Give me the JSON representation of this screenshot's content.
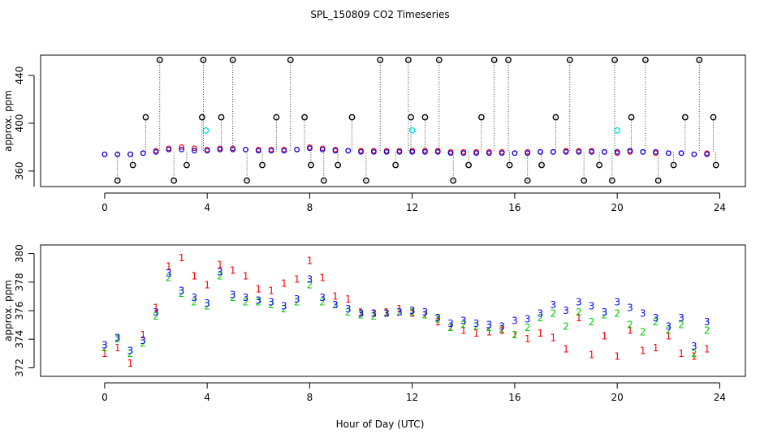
{
  "title": "SPL_150809  CO2 Timeseries",
  "xlabel": "Hour of Day (UTC)",
  "colors": {
    "red": "#ff0000",
    "blue": "#0000ff",
    "green": "#00cc00",
    "cyan": "#00e5e5",
    "black": "#000000"
  },
  "chart_data": [
    {
      "type": "scatter",
      "panel": "top",
      "ylabel": "approx. ppm",
      "xlim": [
        -2.5,
        25
      ],
      "ylim": [
        347,
        457
      ],
      "xticks": [
        0,
        4,
        8,
        12,
        16,
        20,
        24
      ],
      "yticks": [
        360,
        400,
        440
      ],
      "series": [
        {
          "name": "red points",
          "color": "#ff0000",
          "x": [
            0.0,
            0.5,
            1.0,
            1.5,
            2.0,
            2.5,
            3.0,
            3.5,
            4.0,
            4.5,
            5.0,
            5.5,
            6.0,
            6.5,
            7.0,
            7.5,
            8.0,
            8.5,
            9.0,
            9.5,
            10.0,
            10.5,
            11.0,
            11.5,
            12.0,
            12.5,
            13.0,
            13.5,
            14.0,
            14.5,
            15.0,
            15.5,
            16.0,
            16.5,
            17.0,
            17.5,
            18.0,
            18.5,
            19.0,
            19.5,
            20.0,
            20.5,
            21.0,
            21.5,
            22.0,
            22.5,
            23.0,
            23.5
          ],
          "y": [
            374,
            374,
            374,
            375,
            377,
            379,
            380,
            379,
            378,
            379,
            379,
            378,
            378,
            378,
            378,
            378,
            380,
            379,
            378,
            377,
            377,
            377,
            377,
            377,
            377,
            377,
            377,
            376,
            376,
            376,
            376,
            376,
            375,
            376,
            376,
            376,
            377,
            377,
            377,
            376,
            375,
            376,
            376,
            375,
            375,
            375,
            374,
            375
          ]
        },
        {
          "name": "blue points",
          "color": "#0000ff",
          "x": [
            0.0,
            0.5,
            1.0,
            1.5,
            2.0,
            2.5,
            3.0,
            3.5,
            4.0,
            4.5,
            5.0,
            5.5,
            6.0,
            6.5,
            7.0,
            7.5,
            8.0,
            8.5,
            9.0,
            9.5,
            10.0,
            10.5,
            11.0,
            11.5,
            12.0,
            12.5,
            13.0,
            13.5,
            14.0,
            14.5,
            15.0,
            15.5,
            16.0,
            16.5,
            17.0,
            17.5,
            18.0,
            18.5,
            19.0,
            19.5,
            20.0,
            20.5,
            21.0,
            21.5,
            22.0,
            22.5,
            23.0,
            23.5
          ],
          "y": [
            374,
            374,
            374,
            375,
            376,
            378,
            378,
            377,
            377,
            378,
            378,
            378,
            377,
            377,
            377,
            378,
            379,
            378,
            377,
            377,
            376,
            376,
            376,
            376,
            376,
            376,
            376,
            375,
            375,
            375,
            375,
            375,
            375,
            375,
            376,
            376,
            376,
            376,
            376,
            376,
            376,
            377,
            376,
            376,
            375,
            375,
            374,
            374
          ]
        },
        {
          "name": "black circles",
          "color": "#000000",
          "x": [
            0.5,
            1.1,
            1.6,
            2.15,
            2.7,
            3.2,
            3.8,
            3.85,
            4.55,
            5.0,
            5.55,
            6.15,
            6.7,
            7.25,
            7.8,
            8.05,
            8.55,
            9.1,
            9.65,
            10.2,
            10.75,
            11.35,
            11.85,
            11.95,
            12.5,
            13.05,
            13.6,
            14.2,
            14.7,
            15.2,
            15.75,
            15.8,
            16.5,
            17.05,
            17.6,
            18.15,
            18.7,
            19.3,
            19.8,
            19.9,
            20.55,
            21.1,
            21.6,
            22.2,
            22.65,
            23.2,
            23.75,
            23.85
          ],
          "y": [
            352,
            365,
            405,
            453,
            352,
            365,
            405,
            453,
            405,
            453,
            352,
            365,
            405,
            453,
            405,
            365,
            352,
            365,
            405,
            352,
            453,
            365,
            453,
            405,
            405,
            453,
            352,
            365,
            405,
            453,
            453,
            365,
            352,
            365,
            405,
            453,
            352,
            365,
            352,
            453,
            405,
            453,
            352,
            365,
            405,
            453,
            405,
            365
          ]
        },
        {
          "name": "cyan circles",
          "color": "#00e5e5",
          "x": [
            3.95,
            12.0,
            20.0
          ],
          "y": [
            394,
            394,
            394
          ]
        }
      ]
    },
    {
      "type": "scatter",
      "panel": "bottom",
      "ylabel": "approx. ppm",
      "xlim": [
        -2.5,
        25
      ],
      "ylim": [
        371.4,
        380.6
      ],
      "xticks": [
        0,
        4,
        8,
        12,
        16,
        20,
        24
      ],
      "yticks": [
        372,
        374,
        376,
        378,
        380
      ],
      "series": [
        {
          "name": "1",
          "color": "#ff0000",
          "x": [
            0.0,
            0.5,
            1.0,
            1.5,
            2.0,
            2.5,
            3.0,
            3.5,
            4.0,
            4.5,
            5.0,
            5.5,
            6.0,
            6.5,
            7.0,
            7.5,
            8.0,
            8.5,
            9.0,
            9.5,
            10.0,
            10.5,
            11.0,
            11.5,
            12.0,
            12.5,
            13.0,
            13.5,
            14.0,
            14.5,
            15.0,
            15.5,
            16.0,
            16.5,
            17.0,
            17.5,
            18.0,
            18.5,
            19.0,
            19.5,
            20.0,
            20.5,
            21.0,
            21.5,
            22.0,
            22.5,
            23.0,
            23.5
          ],
          "y": [
            373.0,
            373.4,
            372.3,
            374.3,
            376.2,
            379.1,
            379.7,
            378.4,
            377.8,
            379.2,
            378.8,
            378.4,
            377.5,
            377.4,
            377.9,
            378.2,
            379.5,
            378.3,
            377.0,
            376.8,
            375.9,
            375.8,
            375.9,
            376.1,
            375.8,
            375.7,
            375.2,
            374.8,
            374.6,
            374.4,
            374.5,
            374.6,
            374.3,
            374.0,
            374.4,
            374.1,
            373.3,
            375.5,
            372.9,
            374.2,
            372.8,
            374.6,
            373.2,
            373.4,
            374.2,
            373.0,
            372.8,
            373.3
          ]
        },
        {
          "name": "2",
          "color": "#00cc00",
          "x": [
            0.0,
            0.5,
            1.0,
            1.5,
            2.0,
            2.5,
            3.0,
            3.5,
            4.0,
            4.5,
            5.0,
            5.5,
            6.0,
            6.5,
            7.0,
            7.5,
            8.0,
            8.5,
            9.0,
            9.5,
            10.0,
            10.5,
            11.0,
            11.5,
            12.0,
            12.5,
            13.0,
            13.5,
            14.0,
            14.5,
            15.0,
            15.5,
            16.0,
            16.5,
            17.0,
            17.5,
            18.0,
            18.5,
            19.0,
            19.5,
            20.0,
            20.5,
            21.0,
            21.5,
            22.0,
            22.5,
            23.0,
            23.5
          ],
          "y": [
            373.4,
            374.0,
            373.0,
            373.7,
            375.6,
            378.3,
            377.2,
            376.6,
            376.3,
            378.4,
            376.9,
            376.6,
            376.6,
            376.4,
            376.1,
            376.6,
            377.8,
            376.6,
            376.4,
            375.9,
            375.7,
            375.6,
            375.8,
            375.9,
            375.9,
            375.7,
            375.4,
            374.8,
            375.0,
            374.9,
            374.8,
            374.7,
            374.3,
            374.8,
            375.5,
            375.8,
            374.9,
            375.9,
            375.2,
            375.7,
            375.8,
            375.0,
            374.5,
            375.2,
            374.6,
            375.0,
            373.0,
            374.6
          ]
        },
        {
          "name": "3",
          "color": "#0000ff",
          "x": [
            0.0,
            0.5,
            1.0,
            1.5,
            2.0,
            2.5,
            3.0,
            3.5,
            4.0,
            4.5,
            5.0,
            5.5,
            6.0,
            6.5,
            7.0,
            7.5,
            8.0,
            8.5,
            9.0,
            9.5,
            10.0,
            10.5,
            11.0,
            11.5,
            12.0,
            12.5,
            13.0,
            13.5,
            14.0,
            14.5,
            15.0,
            15.5,
            16.0,
            16.5,
            17.0,
            17.5,
            18.0,
            18.5,
            19.0,
            19.5,
            20.0,
            20.5,
            21.0,
            21.5,
            22.0,
            22.5,
            23.0,
            23.5
          ],
          "y": [
            373.6,
            374.1,
            373.2,
            373.9,
            375.9,
            378.6,
            377.4,
            376.9,
            376.5,
            378.7,
            377.1,
            376.9,
            376.7,
            376.6,
            376.3,
            376.8,
            378.2,
            376.9,
            376.4,
            376.1,
            375.8,
            375.8,
            375.8,
            375.9,
            376.0,
            375.9,
            375.5,
            375.1,
            375.3,
            375.1,
            375.0,
            374.9,
            375.3,
            375.4,
            375.8,
            376.4,
            376.0,
            376.6,
            376.3,
            375.9,
            376.6,
            376.2,
            375.8,
            375.5,
            374.9,
            375.5,
            373.5,
            375.2
          ]
        }
      ]
    }
  ]
}
